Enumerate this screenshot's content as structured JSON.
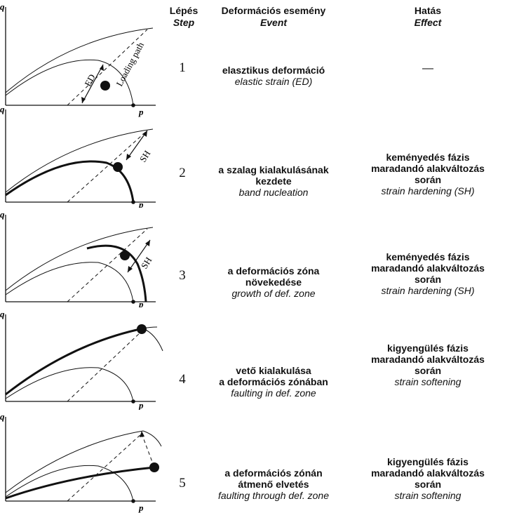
{
  "header": {
    "step_hu": "Lépés",
    "step_en": "Step",
    "event_hu": "Deformációs esemény",
    "event_en": "Event",
    "effect_hu": "Hatás",
    "effect_en": "Effect"
  },
  "axes": {
    "x": "p",
    "y": "q"
  },
  "labels": {
    "loading_path": "Loading path",
    "ed": "ED",
    "sh": "SH"
  },
  "rows": [
    {
      "step": "1",
      "event_hu": [
        "elasztikus deformáció"
      ],
      "event_en": [
        "elastic strain (ED)"
      ],
      "effect_hu": [
        "—"
      ],
      "effect_en": []
    },
    {
      "step": "2",
      "event_hu": [
        "a szalag kialakulásának",
        "kezdete"
      ],
      "event_en": [
        "band nucleation"
      ],
      "effect_hu": [
        "keményedés fázis",
        "maradandó alakváltozás",
        "során"
      ],
      "effect_en": [
        "strain hardening (SH)"
      ]
    },
    {
      "step": "3",
      "event_hu": [
        "a deformációs zóna",
        "növekedése"
      ],
      "event_en": [
        "growth of def. zone"
      ],
      "effect_hu": [
        "keményedés fázis",
        "maradandó alakváltozás",
        "során"
      ],
      "effect_en": [
        "strain hardening (SH)"
      ]
    },
    {
      "step": "4",
      "event_hu": [
        "vető kialakulása",
        "a deformációs zónában"
      ],
      "event_en": [
        "faulting in def. zone"
      ],
      "effect_hu": [
        "kigyengülés fázis",
        "maradandó alakváltozás",
        "során"
      ],
      "effect_en": [
        "strain softening"
      ]
    },
    {
      "step": "5",
      "event_hu": [
        "a deformációs zónán",
        "átmenő elvetés"
      ],
      "event_en": [
        "faulting through def. zone"
      ],
      "effect_hu": [
        "kigyengülés fázis",
        "maradandó alakváltozás",
        "során"
      ],
      "effect_en": [
        "strain softening"
      ]
    }
  ]
}
